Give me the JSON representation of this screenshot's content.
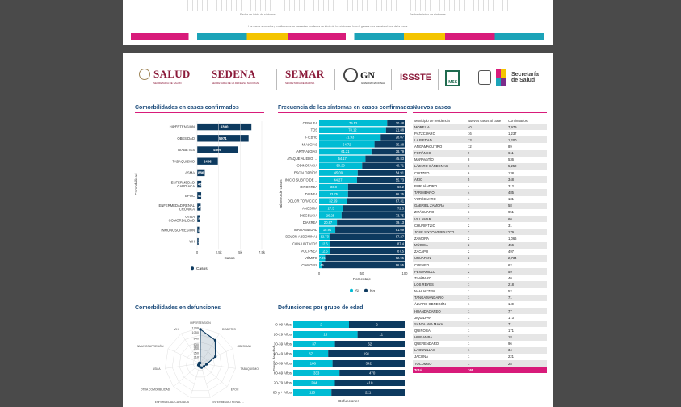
{
  "previous_page": {
    "axis_label_left": "Fecha de inicio de síntomas",
    "axis_label_right": "Fecha de inicio de síntomas",
    "note": "Los casos asociados y confirmados se presentan por fecha de inicio de los síntomas, lo cual genera una meseta al final de la curva"
  },
  "logos": {
    "salud": "SALUD",
    "salud_sub": "SECRETARÍA DE SALUD",
    "sedena": "SEDENA",
    "sedena_sub": "SECRETARÍA DE LA DEFENSA NACIONAL",
    "semar": "SEMAR",
    "semar_sub": "SECRETARÍA DE MARINA",
    "gn": "GN",
    "gn_sub": "GUARDIA NACIONAL",
    "issste": "ISSSTE",
    "imss": "IMSS",
    "secretaria_line1": "Secretaría",
    "secretaria_line2": "de Salud",
    "colors": {
      "guinda": "#8b1a3a",
      "accent": "#d81b7a",
      "navy": "#0d3a5f",
      "cyan": "#00bcd4"
    }
  },
  "panels": {
    "comorbidities_title": "Comorbilidades en casos confirmados",
    "symptoms_title": "Frecuencia de los síntomas en casos confirmados",
    "new_cases_title": "Nuevos casos",
    "deaths_comorbidities_title": "Comorbilidades en defunciones",
    "deaths_age_title": "Defunciones por grupo de edad"
  },
  "chart_data": [
    {
      "type": "bar",
      "title": "Comorbilidades en casos confirmados",
      "orientation": "horizontal",
      "ylabel": "Comorbilidad",
      "xlabel": "Casos",
      "categories": [
        "HIPERTENSIÓN",
        "OBESIDAD",
        "DIABETES",
        "TABAQUISMO",
        "ASMA",
        "ENFERMEDAD CARDÍACA",
        "EPOC",
        "ENFERMEDAD RENAL CRÓNICA",
        "OTRA COMORBILIDAD",
        "INMUNOSUPRESIÓN",
        "VIH"
      ],
      "series": [
        {
          "name": "Casos",
          "values": [
            6300,
            5971,
            4695,
            2406,
            886,
            484,
            473,
            414,
            355,
            236,
            167
          ]
        }
      ],
      "data_labels": [
        "6300",
        "5971",
        "4695",
        "2406",
        "886",
        "484",
        "473",
        "414",
        "355",
        "236",
        "167"
      ],
      "xticks": [
        "0",
        "2.5k",
        "5k",
        "7.5k"
      ],
      "xlim": [
        0,
        7500
      ],
      "legend": "bottom",
      "color": "#0d3a5f"
    },
    {
      "type": "bar",
      "title": "Frecuencia de los síntomas en casos confirmados",
      "orientation": "horizontal-stacked-percent",
      "ylabel": "Número de casos",
      "xlabel": "Porcentaje",
      "categories": [
        "CEFALEA",
        "TOS",
        "FIEBRE",
        "MIALGIAS",
        "ARTRALGIAS",
        "ATAQUE AL EDO. ...",
        "ODINOFAGIA",
        "ESCALOFRÍOS",
        "INICIO SÚBITO DE ...",
        "RINORREA",
        "DISNEA",
        "DOLOR TORÁCICO",
        "ANOSMIA",
        "DISGEUSIA",
        "DIARREA",
        "IRRITABILIDAD",
        "DOLOR ABDOMINAL",
        "CONJUNTIVITIS",
        "POLIPNEA",
        "VÓMITO",
        "CIANOSIS"
      ],
      "series": [
        {
          "name": "Sí",
          "values": [
            79.52,
            78.12,
            71.93,
            64.72,
            61.21,
            54.17,
            50.29,
            45.09,
            44.27,
            33.8,
            33.75,
            32.69,
            27.5,
            26.25,
            20.87,
            18.91,
            12.73,
            12.6,
            12.5,
            7.05,
            3.45
          ]
        },
        {
          "name": "No",
          "values": [
            20.48,
            21.88,
            28.07,
            35.28,
            38.79,
            45.83,
            49.71,
            54.91,
            55.73,
            66.2,
            66.25,
            67.31,
            72.5,
            73.75,
            79.13,
            81.09,
            87.27,
            87.4,
            87.5,
            92.95,
            96.55
          ]
        }
      ],
      "labels_si": [
        "79.52",
        "78.12",
        "71.93",
        "64.72",
        "61.21",
        "54.17",
        "50.29",
        "45.09",
        "44.27",
        "33.8",
        "33.75",
        "32.69",
        "27.5",
        "26.25",
        "20.87",
        "18.91",
        "12.73",
        "12.6",
        "12.5",
        "7.05",
        "3.45"
      ],
      "labels_no": [
        "20.48",
        "21.88",
        "28.07",
        "35.28",
        "38.79",
        "45.83",
        "49.71",
        "54.91",
        "55.73",
        "66.2",
        "66.25",
        "67.31",
        "72.5",
        "73.75",
        "79.13",
        "81.09",
        "87.27",
        "87.4",
        "87.5",
        "92.95",
        "96.55"
      ],
      "xticks": [
        "0",
        "50",
        "100"
      ],
      "xlim": [
        0,
        100
      ],
      "legend": "bottom",
      "colors": {
        "si": "#00bcd4",
        "no": "#0d3a5f"
      }
    },
    {
      "type": "radar",
      "title": "Comorbilidades en defunciones",
      "axes": [
        "HIPERTENSIÓN",
        "DIABETES",
        "OBESIDAD",
        "TABAQUISMO",
        "EPOC",
        "ENFERMEDAD RENAL ...",
        "ENFERMEDAD CARDÍACA",
        "OTRA COMORBILIDAD",
        "ASMA",
        "INMUNOSUPRESIÓN",
        "VIH"
      ],
      "values": [
        1150,
        930,
        560,
        210,
        160,
        150,
        110,
        90,
        45,
        40,
        15
      ],
      "rticks": [
        "0",
        "70",
        "140",
        "210",
        "280",
        "350",
        "420",
        "490",
        "560",
        "630",
        "700",
        "840",
        "1050",
        "1200"
      ],
      "rlim": [
        0,
        1200
      ],
      "color": "#0d3a5f"
    },
    {
      "type": "bar",
      "title": "Defunciones por grupo de edad",
      "orientation": "horizontal-stacked",
      "ylabel": "Grupo de edad",
      "xlabel": "Defunciones",
      "categories": [
        "0-09 Años",
        "20-29 Años",
        "30-39 Años",
        "40-49 Años",
        "50-59 Años",
        "60-69 Años",
        "70-79 Años",
        "80 y + Años"
      ],
      "series": [
        {
          "name": "Serie 1",
          "values": [
            2,
            15,
            37,
            87,
            186,
            333,
            244,
            115
          ]
        },
        {
          "name": "Serie 2",
          "values": [
            2,
            11,
            62,
            191,
            342,
            470,
            410,
            221
          ]
        }
      ],
      "labels_a": [
        "2",
        "15",
        "37",
        "87",
        "186",
        "333",
        "244",
        "115"
      ],
      "labels_b": [
        "2",
        "11",
        "62",
        "191",
        "342",
        "470",
        "410",
        "221"
      ],
      "colors": {
        "a": "#00bcd4",
        "b": "#0d3a5f"
      }
    }
  ],
  "new_cases": {
    "headers": [
      "Municipio de residencia",
      "Nuevos casos al corte",
      "Confirmados"
    ],
    "rows": [
      [
        "MORELIA",
        "40",
        "7,979"
      ],
      [
        "PÁTZCUARO",
        "16",
        "1,237"
      ],
      [
        "LA PIEDAD",
        "13",
        "1,200"
      ],
      [
        "ANGAMACUTIRO",
        "12",
        "89"
      ],
      [
        "FORÁNEO",
        "9",
        "611"
      ],
      [
        "MARAVATÍO",
        "8",
        "536"
      ],
      [
        "LÁZARO CÁRDENAS",
        "6",
        "5,252"
      ],
      [
        "CUITZEO",
        "6",
        "138"
      ],
      [
        "ARIO",
        "5",
        "348"
      ],
      [
        "PURUÁNDIRO",
        "4",
        "312"
      ],
      [
        "TARÍMBARO",
        "4",
        "485"
      ],
      [
        "YURÉCUARO",
        "4",
        "131"
      ],
      [
        "GABRIEL ZAMORA",
        "3",
        "58"
      ],
      [
        "ZITÁCUARO",
        "3",
        "951"
      ],
      [
        "VILLAMAR",
        "2",
        "60"
      ],
      [
        "CHURINTZIO",
        "2",
        "31"
      ],
      [
        "JOSÉ SIXTO VERDUZCO",
        "2",
        "179"
      ],
      [
        "ZAMORA",
        "2",
        "1,066"
      ],
      [
        "MÚGICA",
        "2",
        "456"
      ],
      [
        "ZACAPU",
        "2",
        "497"
      ],
      [
        "URUAPAN",
        "2",
        "2,734"
      ],
      [
        "COENEO",
        "2",
        "62"
      ],
      [
        "PENJAMILLO",
        "2",
        "59"
      ],
      [
        "ZINÁPARO",
        "1",
        "40"
      ],
      [
        "LOS REYES",
        "1",
        "218"
      ],
      [
        "NAHUATZEN",
        "1",
        "52"
      ],
      [
        "TANGAMANDAPIO",
        "1",
        "71"
      ],
      [
        "ÁLVARO OBREGÓN",
        "1",
        "149"
      ],
      [
        "HUANDACAREO",
        "1",
        "77"
      ],
      [
        "JIQUILPAN",
        "1",
        "173"
      ],
      [
        "SANTA ANA MAYA",
        "1",
        "71"
      ],
      [
        "QUIROGA",
        "1",
        "171"
      ],
      [
        "HUIRAMBA",
        "1",
        "18"
      ],
      [
        "QUERÉNDARO",
        "1",
        "96"
      ],
      [
        "LAGUNILLAS",
        "1",
        "34"
      ],
      [
        "JACONA",
        "1",
        "221"
      ],
      [
        "TOCUMBO",
        "1",
        "28"
      ]
    ],
    "total_label": "Total",
    "total_value": "165"
  }
}
